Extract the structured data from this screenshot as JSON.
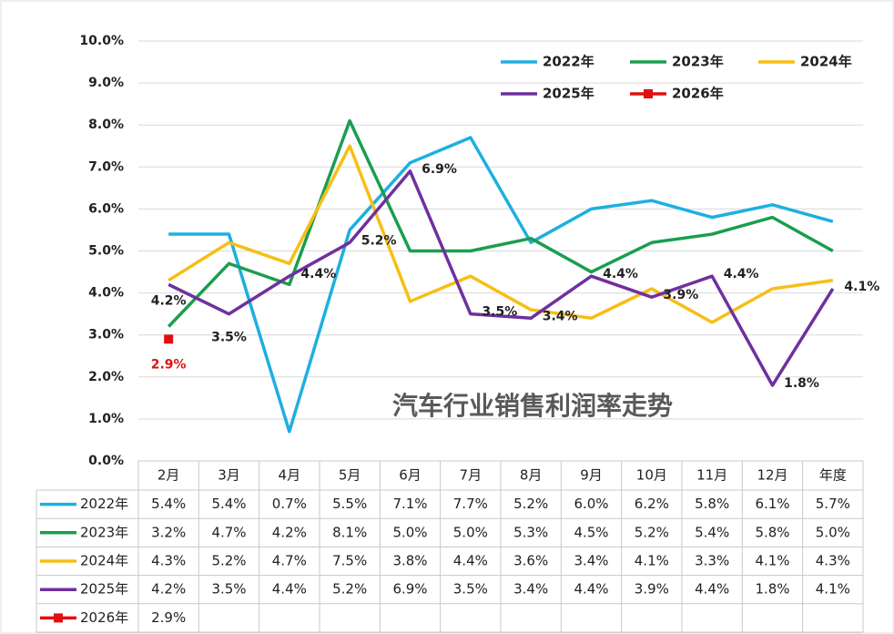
{
  "chart_data": {
    "type": "line",
    "title": "汽车行业销售利润率走势",
    "categories": [
      "2月",
      "3月",
      "4月",
      "5月",
      "6月",
      "7月",
      "8月",
      "9月",
      "10月",
      "11月",
      "12月",
      "年度"
    ],
    "ylim": [
      0,
      10
    ],
    "yticks": [
      {
        "value": 0,
        "label": "0.0%"
      },
      {
        "value": 1,
        "label": "1.0%"
      },
      {
        "value": 2,
        "label": "2.0%"
      },
      {
        "value": 3,
        "label": "3.0%"
      },
      {
        "value": 4,
        "label": "4.0%"
      },
      {
        "value": 5,
        "label": "5.0%"
      },
      {
        "value": 6,
        "label": "6.0%"
      },
      {
        "value": 7,
        "label": "7.0%"
      },
      {
        "value": 8,
        "label": "8.0%"
      },
      {
        "value": 9,
        "label": "9.0%"
      },
      {
        "value": 10,
        "label": "10.0%"
      }
    ],
    "grid": true,
    "legend": "top-right",
    "series": [
      {
        "name": "2022年",
        "color": "#1cb0e0",
        "values": [
          5.4,
          5.4,
          0.7,
          5.5,
          7.1,
          7.7,
          5.2,
          6.0,
          6.2,
          5.8,
          6.1,
          5.7
        ],
        "value_labels": [
          "5.4%",
          "5.4%",
          "0.7%",
          "5.5%",
          "7.1%",
          "7.7%",
          "5.2%",
          "6.0%",
          "6.2%",
          "5.8%",
          "6.1%",
          "5.7%"
        ]
      },
      {
        "name": "2023年",
        "color": "#1a9e4e",
        "values": [
          3.2,
          4.7,
          4.2,
          8.1,
          5.0,
          5.0,
          5.3,
          4.5,
          5.2,
          5.4,
          5.8,
          5.0
        ],
        "value_labels": [
          "3.2%",
          "4.7%",
          "4.2%",
          "8.1%",
          "5.0%",
          "5.0%",
          "5.3%",
          "4.5%",
          "5.2%",
          "5.4%",
          "5.8%",
          "5.0%"
        ]
      },
      {
        "name": "2024年",
        "color": "#f7be16",
        "values": [
          4.3,
          5.2,
          4.7,
          7.5,
          3.8,
          4.4,
          3.6,
          3.4,
          4.1,
          3.3,
          4.1,
          4.3
        ],
        "value_labels": [
          "4.3%",
          "5.2%",
          "4.7%",
          "7.5%",
          "3.8%",
          "4.4%",
          "3.6%",
          "3.4%",
          "4.1%",
          "3.3%",
          "4.1%",
          "4.3%"
        ]
      },
      {
        "name": "2025年",
        "color": "#70309f",
        "data_labels": true,
        "values": [
          4.2,
          3.5,
          4.4,
          5.2,
          6.9,
          3.5,
          3.4,
          4.4,
          3.9,
          4.4,
          1.8,
          4.1
        ],
        "value_labels": [
          "4.2%",
          "3.5%",
          "4.4%",
          "5.2%",
          "6.9%",
          "3.5%",
          "3.4%",
          "4.4%",
          "3.9%",
          "4.4%",
          "1.8%",
          "4.1%"
        ]
      },
      {
        "name": "2026年",
        "color": "#e01010",
        "marker": "square",
        "data_labels": true,
        "values": [
          2.9,
          null,
          null,
          null,
          null,
          null,
          null,
          null,
          null,
          null,
          null,
          null
        ],
        "value_labels": [
          "2.9%",
          null,
          null,
          null,
          null,
          null,
          null,
          null,
          null,
          null,
          null,
          null
        ]
      }
    ]
  }
}
